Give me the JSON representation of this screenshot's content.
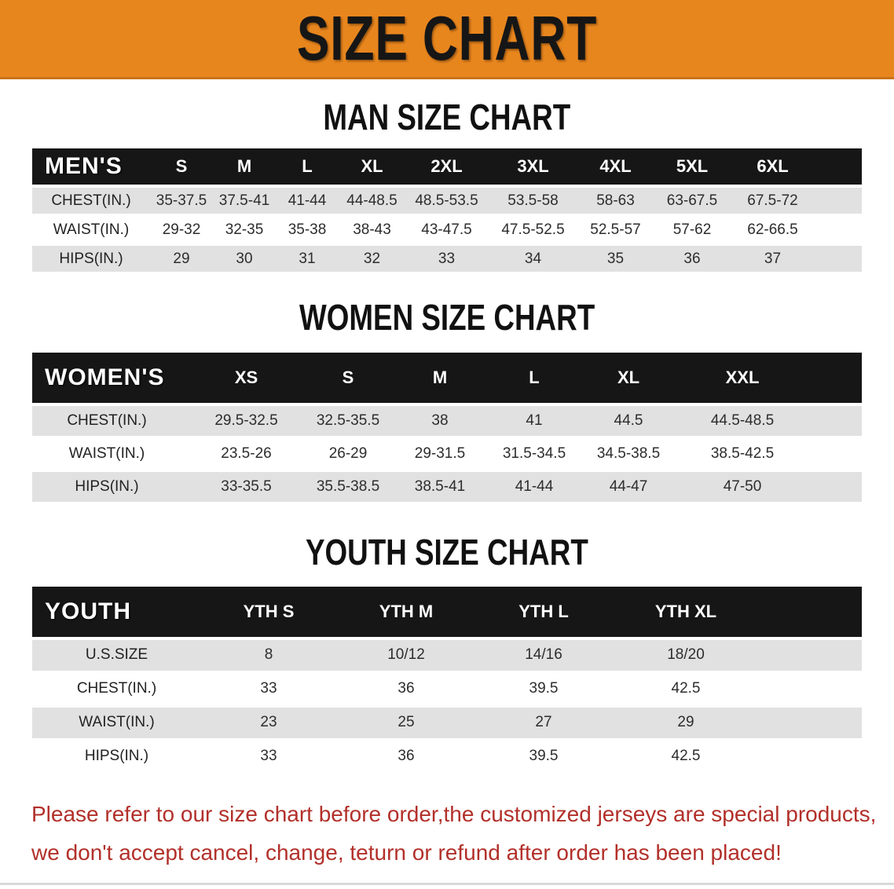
{
  "banner": {
    "title": "SIZE CHART"
  },
  "colors": {
    "banner_bg": "#E8861E",
    "banner_text": "#161616",
    "table_header_bg": "#161616",
    "table_header_text": "#FFFFFF",
    "row_shade": "#E1E1E1",
    "row_plain": "#FFFFFF",
    "value_text": "#2D2D2D",
    "footer_text": "#B2302A"
  },
  "sections": [
    {
      "id": "men",
      "heading": "MAN SIZE CHART",
      "table": {
        "label": "MEN'S",
        "columns": [
          "S",
          "M",
          "L",
          "XL",
          "2XL",
          "3XL",
          "4XL",
          "5XL",
          "6XL"
        ],
        "rows": [
          {
            "label": "CHEST(IN.)",
            "values": [
              "35-37.5",
              "37.5-41",
              "41-44",
              "44-48.5",
              "48.5-53.5",
              "53.5-58",
              "58-63",
              "63-67.5",
              "67.5-72"
            ]
          },
          {
            "label": "WAIST(IN.)",
            "values": [
              "29-32",
              "32-35",
              "35-38",
              "38-43",
              "43-47.5",
              "47.5-52.5",
              "52.5-57",
              "57-62",
              "62-66.5"
            ]
          },
          {
            "label": "HIPS(IN.)",
            "values": [
              "29",
              "30",
              "31",
              "32",
              "33",
              "34",
              "35",
              "36",
              "37"
            ]
          }
        ]
      }
    },
    {
      "id": "women",
      "heading": "WOMEN SIZE CHART",
      "table": {
        "label": "WOMEN'S",
        "columns": [
          "XS",
          "S",
          "M",
          "L",
          "XL",
          "XXL"
        ],
        "rows": [
          {
            "label": "CHEST(IN.)",
            "values": [
              "29.5-32.5",
              "32.5-35.5",
              "38",
              "41",
              "44.5",
              "44.5-48.5"
            ]
          },
          {
            "label": "WAIST(IN.)",
            "values": [
              "23.5-26",
              "26-29",
              "29-31.5",
              "31.5-34.5",
              "34.5-38.5",
              "38.5-42.5"
            ]
          },
          {
            "label": "HIPS(IN.)",
            "values": [
              "33-35.5",
              "35.5-38.5",
              "38.5-41",
              "41-44",
              "44-47",
              "47-50"
            ]
          }
        ]
      }
    },
    {
      "id": "youth",
      "heading": "YOUTH SIZE CHART",
      "table": {
        "label": "YOUTH",
        "columns": [
          "YTH S",
          "YTH M",
          "YTH L",
          "YTH XL"
        ],
        "rows": [
          {
            "label": "U.S.SIZE",
            "values": [
              "8",
              "10/12",
              "14/16",
              "18/20"
            ]
          },
          {
            "label": "CHEST(IN.)",
            "values": [
              "33",
              "36",
              "39.5",
              "42.5"
            ]
          },
          {
            "label": "WAIST(IN.)",
            "values": [
              "23",
              "25",
              "27",
              "29"
            ]
          },
          {
            "label": "HIPS(IN.)",
            "values": [
              "33",
              "36",
              "39.5",
              "42.5"
            ]
          }
        ]
      }
    }
  ],
  "footer": {
    "line1": "Please refer to our size chart before order,the customized jerseys are special products,",
    "line2": "we don't accept cancel, change, teturn or refund after order has been placed!"
  }
}
